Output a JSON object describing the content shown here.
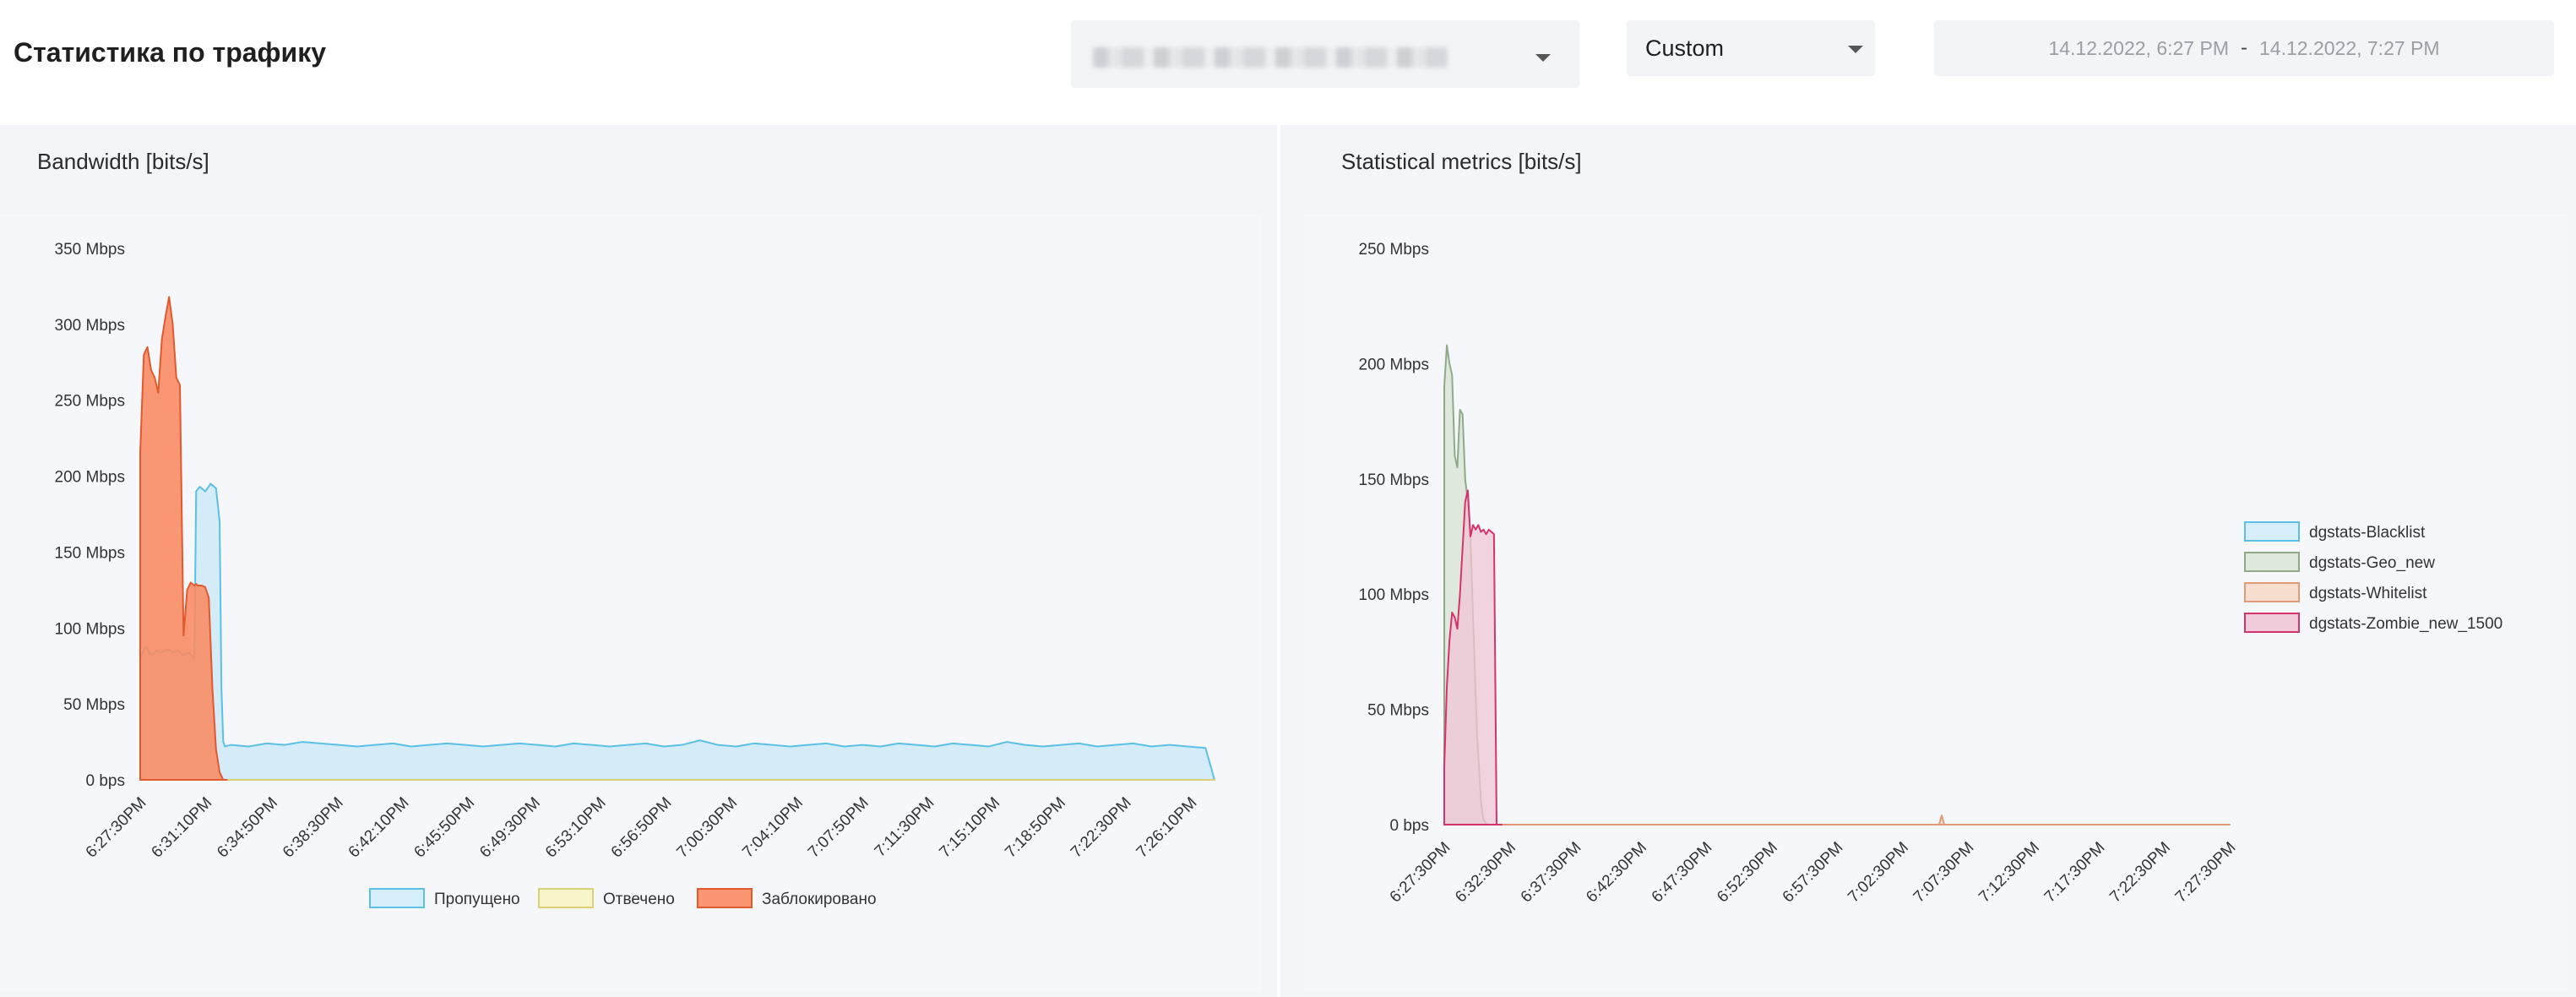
{
  "header": {
    "title": "Статистика по трафику",
    "time_range": "Custom",
    "date_from": "14.12.2022, 6:27 PM",
    "date_separator": "-",
    "date_to": "14.12.2022, 7:27 PM"
  },
  "panels": {
    "bandwidth": {
      "title": "Bandwidth [bits/s]"
    },
    "metrics": {
      "title": "Statistical metrics [bits/s]"
    }
  },
  "colors": {
    "passed_fill": "#d3ecf8",
    "passed_line": "#5bc0e6",
    "answered_fill": "#f8f4c4",
    "answered_line": "#d9cf74",
    "blocked_fill": "#f98a62",
    "blocked_line": "#e1592f",
    "blacklist_fill": "#d3ecf8",
    "blacklist_line": "#5bc0e6",
    "geo_fill": "#dde6d8",
    "geo_line": "#8faa87",
    "whitelist_fill": "#f6d9c9",
    "whitelist_line": "#e09a78",
    "zombie_fill": "#efc6d6",
    "zombie_line": "#d6336c"
  },
  "chart_data": [
    {
      "type": "area",
      "title": "Bandwidth [bits/s]",
      "ylabel": "",
      "ylim": [
        0,
        350
      ],
      "yunit": "Mbps",
      "yticks": [
        "0 bps",
        "50 Mbps",
        "100 Mbps",
        "150 Mbps",
        "200 Mbps",
        "250 Mbps",
        "300 Mbps",
        "350 Mbps"
      ],
      "xticks": [
        "6:27:30PM",
        "6:31:10PM",
        "6:34:50PM",
        "6:38:30PM",
        "6:42:10PM",
        "6:45:50PM",
        "6:49:30PM",
        "6:53:10PM",
        "6:56:50PM",
        "7:00:30PM",
        "7:04:10PM",
        "7:07:50PM",
        "7:11:30PM",
        "7:15:10PM",
        "7:18:50PM",
        "7:22:30PM",
        "7:26:10PM"
      ],
      "x_minutes_range": [
        0,
        59.5
      ],
      "legend_position": "bottom",
      "series": [
        {
          "name": "Пропущено",
          "x": [
            0,
            0.3,
            0.6,
            0.9,
            1.2,
            1.5,
            1.8,
            2.1,
            2.4,
            2.7,
            3.0,
            3.1,
            3.3,
            3.6,
            3.9,
            4.2,
            4.4,
            4.5,
            4.6,
            4.7,
            5.0,
            6,
            7,
            8,
            9,
            10,
            11,
            12,
            13,
            14,
            15,
            16,
            17,
            18,
            19,
            20,
            21,
            22,
            23,
            24,
            25,
            26,
            27,
            28,
            29,
            30,
            31,
            32,
            33,
            34,
            35,
            36,
            37,
            38,
            39,
            40,
            41,
            42,
            43,
            44,
            45,
            46,
            47,
            48,
            49,
            50,
            51,
            52,
            53,
            54,
            55,
            56,
            57,
            58,
            59,
            59.5
          ],
          "values": [
            80,
            88,
            82,
            85,
            84,
            86,
            84,
            85,
            82,
            84,
            80,
            190,
            193,
            190,
            195,
            192,
            170,
            60,
            25,
            22,
            23,
            22,
            24,
            23,
            25,
            24,
            23,
            22,
            23,
            24,
            22,
            23,
            24,
            23,
            22,
            23,
            24,
            23,
            22,
            24,
            23,
            22,
            23,
            24,
            22,
            23,
            26,
            23,
            22,
            24,
            23,
            22,
            23,
            24,
            22,
            23,
            22,
            24,
            23,
            22,
            24,
            23,
            22,
            25,
            23,
            22,
            23,
            24,
            22,
            23,
            24,
            22,
            23,
            22,
            21,
            0
          ]
        },
        {
          "name": "Отвечено",
          "x": [
            0,
            59.5
          ],
          "values": [
            0,
            0
          ]
        },
        {
          "name": "Заблокировано",
          "x": [
            0,
            0.2,
            0.4,
            0.6,
            0.8,
            1.0,
            1.2,
            1.4,
            1.6,
            1.8,
            2.0,
            2.2,
            2.4,
            2.6,
            2.8,
            3.0,
            3.1,
            3.2,
            3.4,
            3.6,
            3.8,
            4.0,
            4.2,
            4.4,
            4.6,
            4.8
          ],
          "values": [
            215,
            280,
            285,
            270,
            265,
            255,
            290,
            305,
            318,
            300,
            265,
            260,
            95,
            125,
            130,
            128,
            129,
            128,
            128,
            127,
            120,
            60,
            20,
            5,
            0,
            0
          ]
        }
      ]
    },
    {
      "type": "area",
      "title": "Statistical metrics [bits/s]",
      "ylabel": "",
      "ylim": [
        0,
        250
      ],
      "yunit": "Mbps",
      "yticks": [
        "0 bps",
        "50 Mbps",
        "100 Mbps",
        "150 Mbps",
        "200 Mbps",
        "250 Mbps"
      ],
      "xticks": [
        "6:27:30PM",
        "6:32:30PM",
        "6:37:30PM",
        "6:42:30PM",
        "6:47:30PM",
        "6:52:30PM",
        "6:57:30PM",
        "7:02:30PM",
        "7:07:30PM",
        "7:12:30PM",
        "7:17:30PM",
        "7:22:30PM",
        "7:27:30PM"
      ],
      "x_minutes_range": [
        0,
        60
      ],
      "legend_position": "right",
      "series": [
        {
          "name": "dgstats-Blacklist",
          "x": [
            0,
            60
          ],
          "values": [
            0,
            0
          ]
        },
        {
          "name": "dgstats-Geo_new",
          "x": [
            0,
            0.2,
            0.4,
            0.6,
            0.8,
            1.0,
            1.2,
            1.4,
            1.6,
            1.8,
            2.0,
            2.2,
            2.5,
            2.8,
            3.0,
            3.3,
            3.6
          ],
          "values": [
            190,
            208,
            200,
            195,
            160,
            155,
            180,
            178,
            150,
            140,
            125,
            90,
            40,
            10,
            2,
            0,
            0
          ]
        },
        {
          "name": "dgstats-Whitelist",
          "x": [
            0,
            37.8,
            38.0,
            38.2,
            60
          ],
          "values": [
            0,
            0,
            4,
            0,
            0
          ]
        },
        {
          "name": "dgstats-Zombie_new_1500",
          "x": [
            0,
            0.2,
            0.4,
            0.6,
            0.8,
            1.0,
            1.2,
            1.4,
            1.6,
            1.8,
            2.0,
            2.2,
            2.4,
            2.6,
            2.8,
            3.0,
            3.2,
            3.4,
            3.6,
            3.8,
            4.0,
            4.2,
            4.4
          ],
          "values": [
            25,
            60,
            80,
            92,
            90,
            85,
            100,
            120,
            140,
            145,
            125,
            130,
            128,
            130,
            127,
            128,
            126,
            128,
            127,
            126,
            0,
            0,
            0
          ]
        }
      ]
    }
  ]
}
